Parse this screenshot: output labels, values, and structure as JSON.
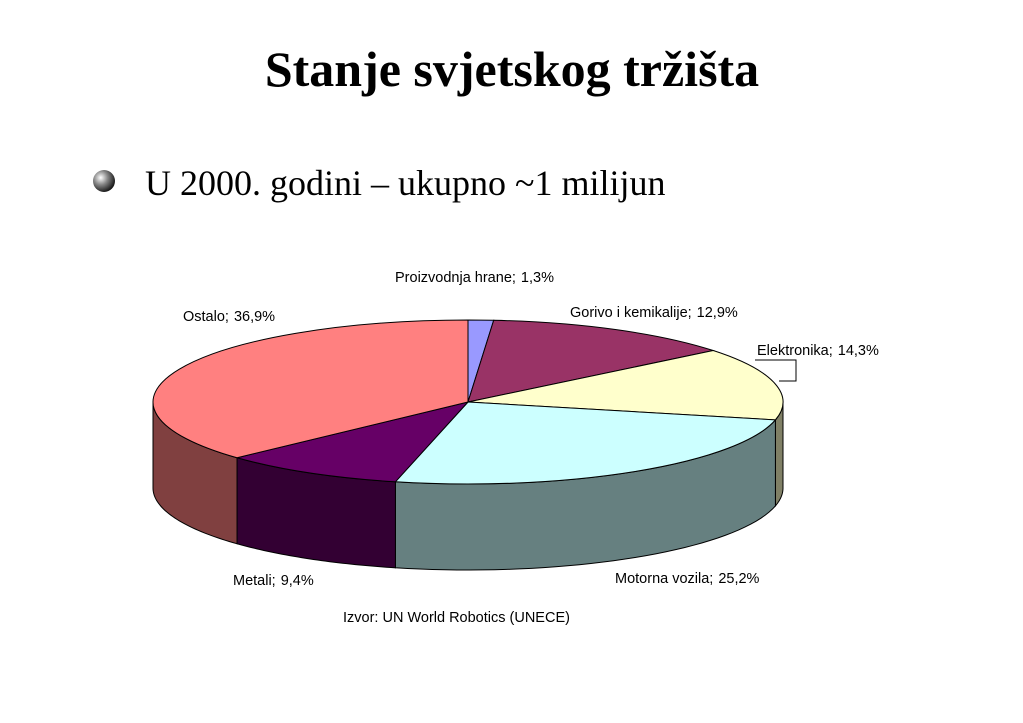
{
  "slide": {
    "title": "Stanje svjetskog tržišta",
    "bullet": "U 2000. godini – ukupno ~1 milijun"
  },
  "chart_data": {
    "type": "pie",
    "categories": [
      "Proizvodnja hrane;",
      "Gorivo i kemikalije;",
      "Elektronika;",
      "Motorna vozila;",
      "Metali;",
      "Ostalo;"
    ],
    "values": [
      1.3,
      12.9,
      14.3,
      25.2,
      9.4,
      36.9
    ],
    "value_labels": [
      "1,3%",
      "12,9%",
      "14,3%",
      "25,2%",
      "9,4%",
      "36,9%"
    ],
    "colors": [
      "#9999ff",
      "#993366",
      "#ffffcc",
      "#ccffff",
      "#660066",
      "#ff8080"
    ],
    "side_colors": [
      "#4d4d80",
      "#4d1a33",
      "#808066",
      "#668080",
      "#330033",
      "#804040"
    ],
    "note": "Izvor: UN World Robotics (UNECE)"
  }
}
